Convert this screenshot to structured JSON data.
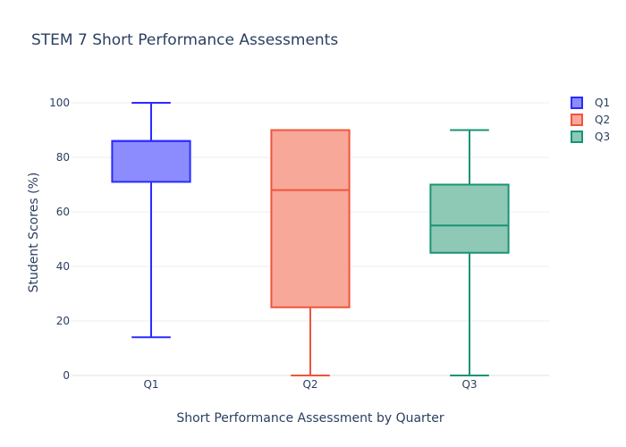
{
  "chart_data": {
    "type": "box",
    "title": "STEM 7 Short Performance Assessments",
    "xlabel": "Short Performance Assessment by Quarter",
    "ylabel": "Student Scores (%)",
    "ylim": [
      0,
      100
    ],
    "yticks": [
      0,
      20,
      40,
      60,
      80,
      100
    ],
    "grid": true,
    "legend_position": "top-right",
    "categories": [
      "Q1",
      "Q2",
      "Q3"
    ],
    "series": [
      {
        "name": "Q1",
        "color": "#2b2bff",
        "fill": "#8c8cff",
        "min": 14,
        "q1": 71,
        "median": 86,
        "q3": 86,
        "max": 100
      },
      {
        "name": "Q2",
        "color": "#f0543c",
        "fill": "#f7a899",
        "min": 0,
        "q1": 25,
        "median": 68,
        "q3": 90,
        "max": 90
      },
      {
        "name": "Q3",
        "color": "#1a9373",
        "fill": "#8dc9b5",
        "min": 0,
        "q1": 45,
        "median": 55,
        "q3": 70,
        "max": 90
      }
    ]
  }
}
